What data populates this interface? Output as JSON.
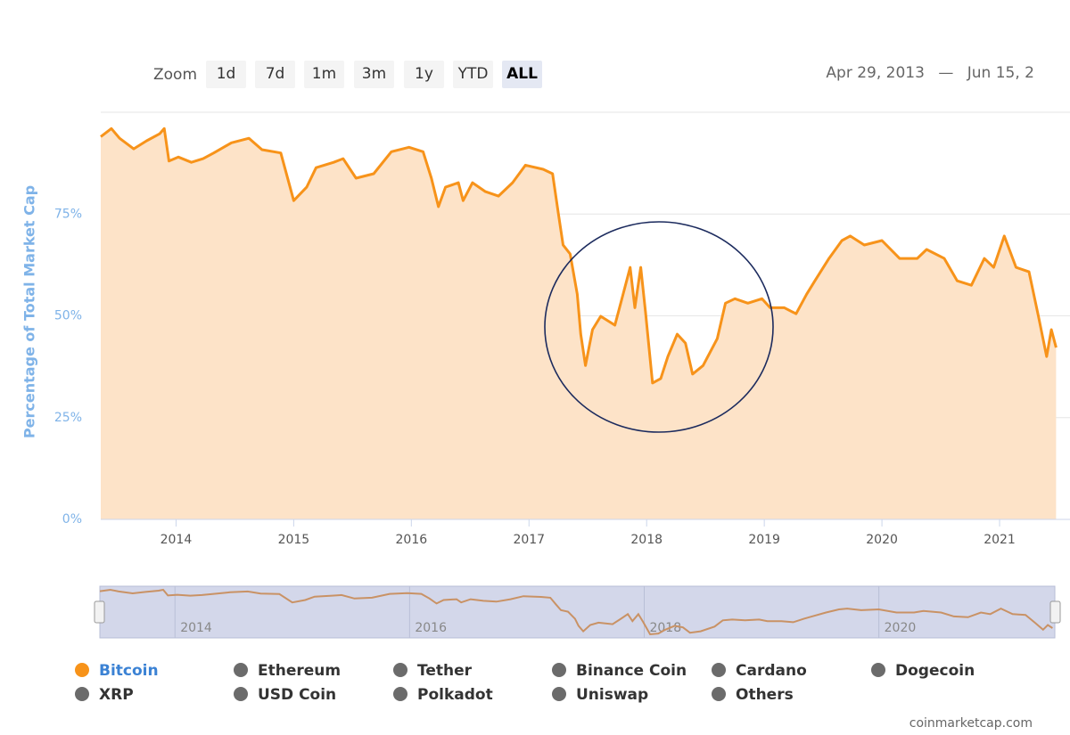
{
  "chart_data": {
    "type": "area",
    "zoom_label": "Zoom",
    "zoom_buttons": [
      "1d",
      "7d",
      "1m",
      "3m",
      "1y",
      "YTD",
      "ALL"
    ],
    "zoom_selected": 6,
    "date_range": {
      "from": "Apr 29, 2013",
      "separator": "—",
      "to": "Jun 15, 2"
    },
    "y_label": "Percentage of Total Market Cap",
    "xlim": [
      2013.36,
      2021.5
    ],
    "xticks": [
      2014,
      2015,
      2016,
      2017,
      2018,
      2019,
      2020,
      2021
    ],
    "ylim": [
      0,
      100
    ],
    "yticks": [
      {
        "value": 0,
        "label": "0%"
      },
      {
        "value": 25,
        "label": "25%"
      },
      {
        "value": 50,
        "label": "50%"
      },
      {
        "value": 75,
        "label": "75%"
      }
    ],
    "grid": true,
    "x": [
      2013.36,
      2013.45,
      2013.52,
      2013.64,
      2013.75,
      2013.86,
      2013.9,
      2013.94,
      2014.02,
      2014.13,
      2014.23,
      2014.32,
      2014.47,
      2014.62,
      2014.73,
      2014.89,
      2015.0,
      2015.11,
      2015.19,
      2015.34,
      2015.42,
      2015.53,
      2015.68,
      2015.83,
      2015.98,
      2016.1,
      2016.17,
      2016.23,
      2016.29,
      2016.4,
      2016.44,
      2016.52,
      2016.63,
      2016.74,
      2016.86,
      2016.97,
      2017.12,
      2017.2,
      2017.25,
      2017.29,
      2017.35,
      2017.41,
      2017.44,
      2017.48,
      2017.54,
      2017.61,
      2017.73,
      2017.8,
      2017.86,
      2017.9,
      2017.95,
      2017.99,
      2018.05,
      2018.12,
      2018.18,
      2018.26,
      2018.33,
      2018.39,
      2018.48,
      2018.6,
      2018.67,
      2018.75,
      2018.86,
      2018.98,
      2019.05,
      2019.17,
      2019.27,
      2019.36,
      2019.43,
      2019.55,
      2019.66,
      2019.73,
      2019.85,
      2020.0,
      2020.15,
      2020.3,
      2020.38,
      2020.53,
      2020.64,
      2020.76,
      2020.87,
      2020.95,
      2021.04,
      2021.14,
      2021.25,
      2021.33,
      2021.4,
      2021.44,
      2021.48
    ],
    "series": [
      {
        "name": "Bitcoin",
        "color": "#f7931a",
        "fill": "#fde3c8",
        "values": [
          94,
          96,
          93.6,
          91,
          93,
          94.7,
          96,
          88,
          89,
          87.7,
          88.6,
          90,
          92.5,
          93.6,
          90.8,
          90,
          78.3,
          81.6,
          86.4,
          87.7,
          88.6,
          83.8,
          84.9,
          90.3,
          91.4,
          90.3,
          83.8,
          76.8,
          81.6,
          82.7,
          78.3,
          82.7,
          80.5,
          79.4,
          82.7,
          87,
          86,
          84.9,
          75,
          67.4,
          65.2,
          55.3,
          45.5,
          37.8,
          46.6,
          49.9,
          47.7,
          55.3,
          61.9,
          52,
          61.9,
          51,
          33.5,
          34.6,
          40,
          45.5,
          43.3,
          35.7,
          37.8,
          44.4,
          53.1,
          54.2,
          53.1,
          54.2,
          52,
          52,
          50.5,
          55.3,
          58.6,
          64.1,
          68.5,
          69.6,
          67.4,
          68.5,
          64.1,
          64.1,
          66.3,
          64.1,
          58.6,
          57.5,
          64.1,
          61.9,
          69.6,
          61.9,
          60.8,
          49.9,
          40,
          46.6,
          42.2
        ]
      }
    ],
    "inactive_series": [
      "Ethereum",
      "Tether",
      "Binance Coin",
      "Cardano",
      "Dogecoin",
      "XRP",
      "USD Coin",
      "Polkadot",
      "Uniswap",
      "Others"
    ],
    "inactive_color": "#6b6b6b",
    "navigator_xticks": [
      2014,
      2016,
      2018,
      2020
    ],
    "credit": "coinmarketcap.com"
  }
}
